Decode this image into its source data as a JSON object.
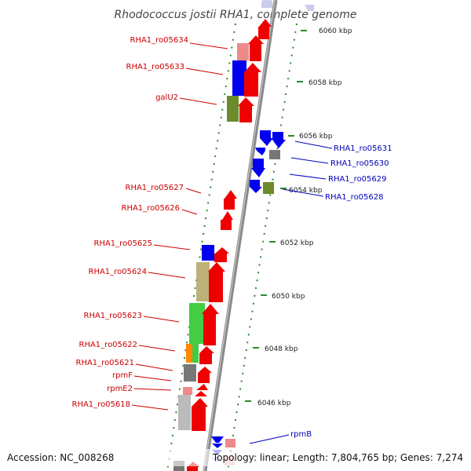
{
  "title": "Rhodococcus jostii RHA1, complete genome",
  "footer": {
    "accession": "Accession: NC_008268",
    "summary": "Topology: linear; Length: 7,804,765 bp; Genes: 7,274"
  },
  "colors": {
    "axis": "#888888",
    "ticks": "#2a8a2a",
    "forward_label": "#cc0000",
    "reverse_label": "#0000bb",
    "red": "#ee0000",
    "pink": "#ef8a8a",
    "blue": "#0000ee",
    "olive": "#6b8a2a",
    "khaki": "#bdb27a",
    "green": "#44cc44",
    "orange": "#ff8800",
    "gray": "#777777",
    "lightgray": "#bbbbbb"
  },
  "kbp_ticks": [
    "6060 kbp",
    "6058 kbp",
    "6056 kbp",
    "6054 kbp",
    "6052 kbp",
    "6050 kbp",
    "6048 kbp",
    "6046 kbp"
  ],
  "forward_labels": [
    "RHA1_ro05634",
    "RHA1_ro05633",
    "galU2",
    "RHA1_ro05627",
    "RHA1_ro05626",
    "RHA1_ro05625",
    "RHA1_ro05624",
    "RHA1_ro05623",
    "RHA1_ro05622",
    "RHA1_ro05621",
    "rpmF",
    "rpmE2",
    "RHA1_ro05618"
  ],
  "reverse_labels": [
    "RHA1_ro05631",
    "RHA1_ro05630",
    "RHA1_ro05629",
    "RHA1_ro05628",
    "rpmB"
  ]
}
